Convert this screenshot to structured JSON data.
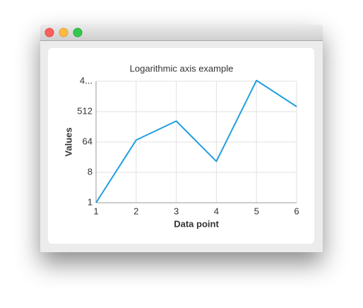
{
  "chart_data": {
    "type": "line",
    "title": "Logarithmic axis example",
    "x_label": "Data point",
    "y_label": "Values",
    "x": [
      1,
      2,
      3,
      4,
      5,
      6
    ],
    "series": [
      {
        "name": "Values",
        "color": "#209fdf",
        "values": [
          1,
          73,
          268,
          17,
          4325,
          723
        ]
      }
    ],
    "xlim": [
      1,
      6
    ],
    "xticks": [
      1,
      2,
      3,
      4,
      5,
      6
    ],
    "ylim": [
      1,
      4096
    ],
    "yticks": [
      1,
      8,
      64,
      512,
      {
        "value": 4096,
        "label": "4..."
      }
    ],
    "ylog": true,
    "grid": true,
    "legend": false
  }
}
